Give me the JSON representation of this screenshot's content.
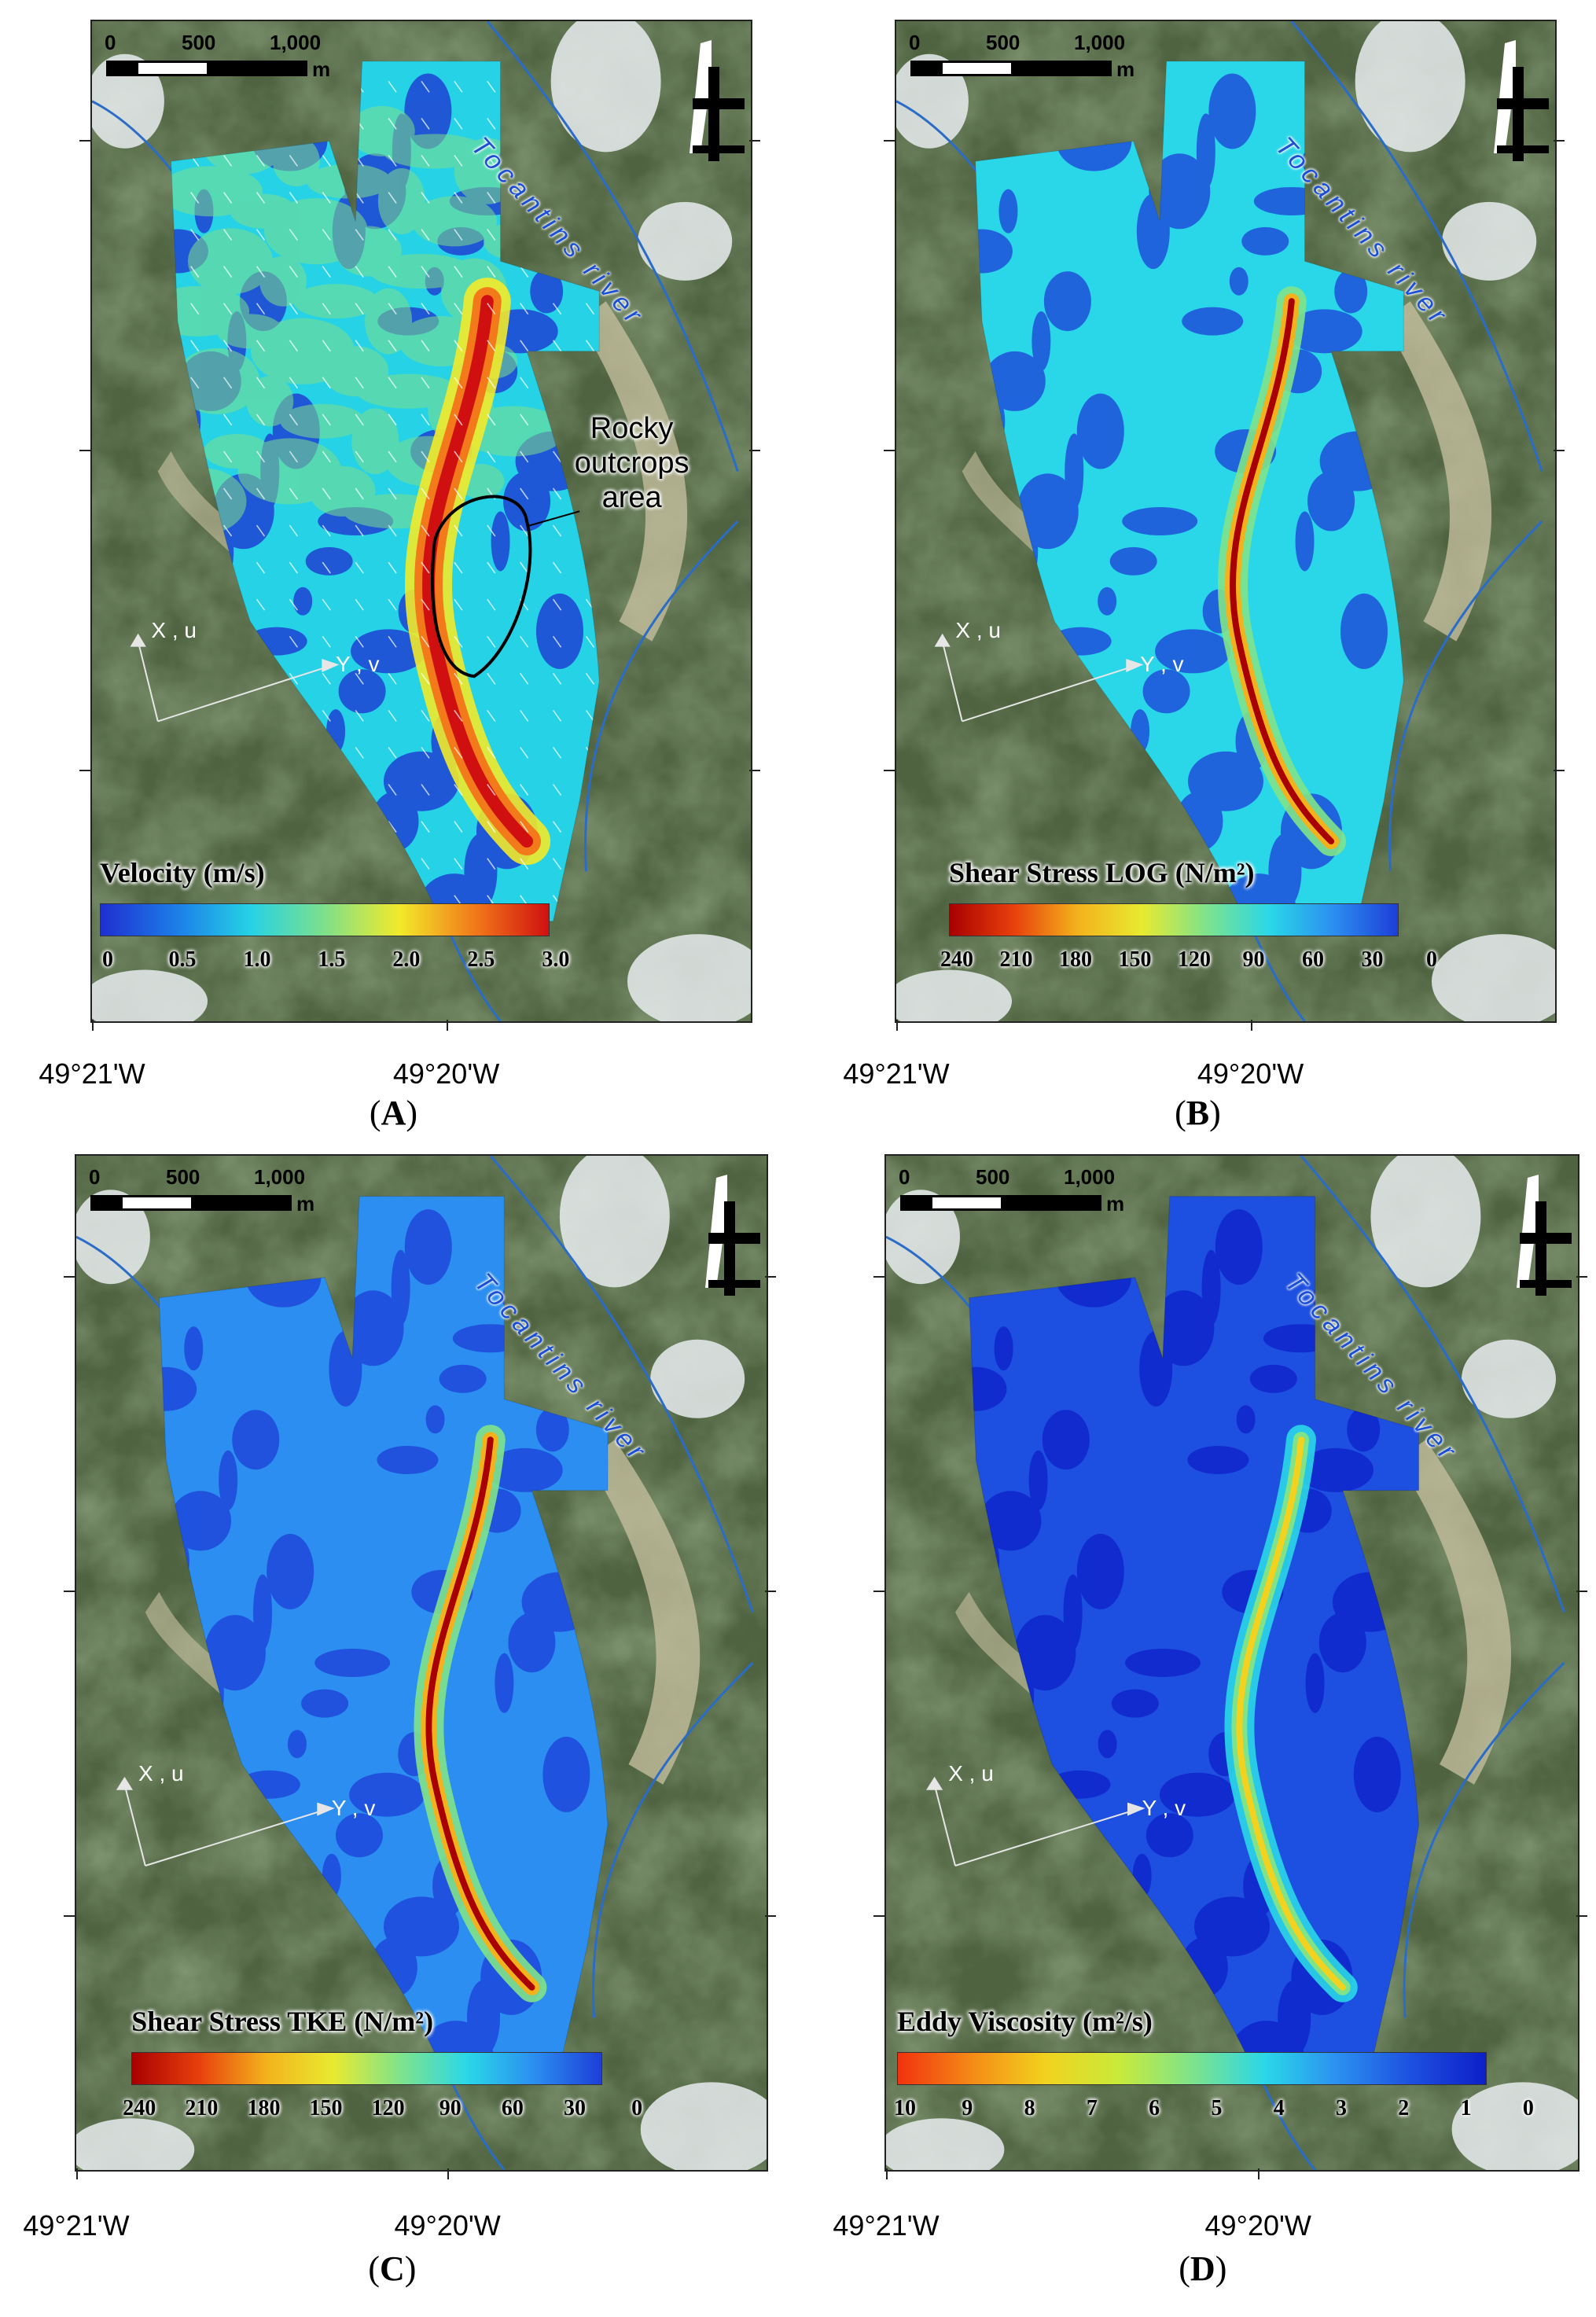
{
  "panels": [
    {
      "id": "A",
      "label_paren_open": "(",
      "label": "A",
      "label_paren_close": ")",
      "legend_title": "Velocity (m/s)",
      "legend_ticks": [
        "0",
        "0.5",
        "1.0",
        "1.5",
        "2.0",
        "2.5",
        "3.0"
      ],
      "legend_colors": [
        "#1e2fd0",
        "#1d7ce8",
        "#25d2e6",
        "#7ee08a",
        "#f2ea2a",
        "#f27a1a",
        "#d01010"
      ],
      "annotation": "Rocky outcrops area"
    },
    {
      "id": "B",
      "label_paren_open": "(",
      "label": "B",
      "label_paren_close": ")",
      "legend_title": "Shear Stress LOG (N/m²)",
      "legend_ticks": [
        "240",
        "210",
        "180",
        "150",
        "120",
        "90",
        "60",
        "30",
        "0"
      ],
      "legend_colors": [
        "#a80000",
        "#e8400c",
        "#f3b21c",
        "#e8ea30",
        "#7fe38a",
        "#2ad7e8",
        "#2b8ef0",
        "#1d3ed8"
      ]
    },
    {
      "id": "C",
      "label_paren_open": "(",
      "label": "C",
      "label_paren_close": ")",
      "legend_title": "Shear Stress TKE (N/m²)",
      "legend_ticks": [
        "240",
        "210",
        "180",
        "150",
        "120",
        "90",
        "60",
        "30",
        "0"
      ],
      "legend_colors": [
        "#a80000",
        "#e8400c",
        "#f3b21c",
        "#e8ea30",
        "#7fe38a",
        "#2ad7e8",
        "#2b8ef0",
        "#1d3ed8"
      ]
    },
    {
      "id": "D",
      "label_paren_open": "(",
      "label": "D",
      "label_paren_close": ")",
      "legend_title": "Eddy Viscosity (m²/s)",
      "legend_ticks": [
        "10",
        "9",
        "8",
        "7",
        "6",
        "5",
        "4",
        "3",
        "2",
        "1",
        "0"
      ],
      "legend_colors": [
        "#f2320e",
        "#f58a16",
        "#f2d21e",
        "#c9ea3a",
        "#7fe38a",
        "#2ad7e8",
        "#2b8ef0",
        "#1d4fe0",
        "#0d1fc8"
      ]
    }
  ],
  "common": {
    "scale_0": "0",
    "scale_500": "500",
    "scale_1000": "1,000",
    "scale_unit": "m",
    "river_name": "Tocantins river",
    "axis_x": "X , u",
    "axis_y": "Y , v",
    "lon_left": "49°21'W",
    "lon_right": "49°20'W"
  },
  "colors": {
    "satellite": "#4f6341",
    "river_line": "#2a6cc7",
    "cloud": "#e8ecef"
  }
}
